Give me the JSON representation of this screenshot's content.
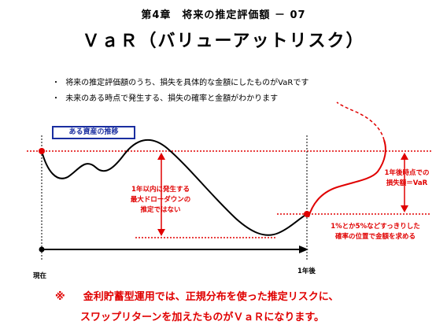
{
  "header": {
    "chapter": "第4章　将来の推定評価額 － 07",
    "title": "ＶａＲ（バリューアットリスク）"
  },
  "bullets": [
    {
      "mark": "・",
      "text": "将来の推定評価額のうち、損失を具体的な金額にしたものがVaRです"
    },
    {
      "mark": "・",
      "text": "未来のある時点で発生する、損失の確率と金額がわかります"
    }
  ],
  "diagram": {
    "box_label": "ある資産の推移",
    "left_annotation": [
      "1年以内に発生する",
      "最大ドローダウンの",
      "推定ではない"
    ],
    "right_annotation": [
      "1年後時点での",
      "損失額＝VaR"
    ],
    "bottom_annotation": [
      "1%とか5%などすっきりした",
      "確率の位置で金額を求める"
    ],
    "x_start_label": "現在",
    "x_end_label": "1年後"
  },
  "note": {
    "mark": "※",
    "line1": "金利貯蓄型運用では、正規分布を使った推定リスクに、",
    "line2": "スワップリターンを加えたものがＶａＲになります。"
  },
  "colors": {
    "accent": "#e00000",
    "box_border": "#1a2ea0"
  }
}
